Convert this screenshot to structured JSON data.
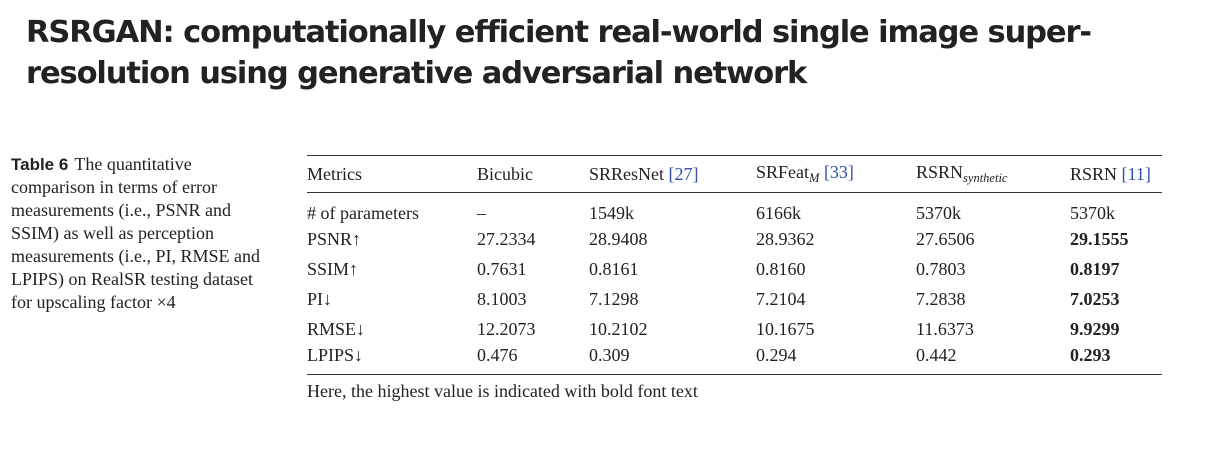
{
  "paper_title": "RSRGAN: computationally efficient real-world single image super-resolution using generative adversarial network",
  "caption": {
    "label": "Table 6",
    "text": "The quantitative comparison in terms of error measurements (i.e., PSNR and SSIM) as well as perception measurements (i.e., PI, RMSE and LPIPS) on RealSR testing dataset for upscaling factor ×4"
  },
  "table": {
    "headers": {
      "metrics": "Metrics",
      "bicubic": "Bicubic",
      "srresnet": "SRResNet",
      "srresnet_ref": "[27]",
      "srfeat": "SRFeat",
      "srfeat_sub": "M",
      "srfeat_ref": "[33]",
      "rsrn_syn": "RSRN",
      "rsrn_syn_sub": "synthetic",
      "rsrn": "RSRN",
      "rsrn_ref": "[11]"
    },
    "rows": [
      {
        "metric": "# of parameters",
        "values": [
          "–",
          "1549k",
          "6166k",
          "5370k",
          "5370k"
        ],
        "best_index": -1
      },
      {
        "metric": "PSNR↑",
        "values": [
          "27.2334",
          "28.9408",
          "28.9362",
          "27.6506",
          "29.1555"
        ],
        "best_index": 4
      },
      {
        "metric": "SSIM↑",
        "values": [
          "0.7631",
          "0.8161",
          "0.8160",
          "0.7803",
          "0.8197"
        ],
        "best_index": 4
      },
      {
        "metric": "PI↓",
        "values": [
          "8.1003",
          "7.1298",
          "7.2104",
          "7.2838",
          "7.0253"
        ],
        "best_index": 4
      },
      {
        "metric": "RMSE↓",
        "values": [
          "12.2073",
          "10.2102",
          "10.1675",
          "11.6373",
          "9.9299"
        ],
        "best_index": 4
      },
      {
        "metric": "LPIPS↓",
        "values": [
          "0.476",
          "0.309",
          "0.294",
          "0.442",
          "0.293"
        ],
        "best_index": 4
      }
    ],
    "footnote": "Here, the highest value is indicated with bold font text"
  },
  "colors": {
    "reference_link": "#2f4fa8",
    "text": "#222222",
    "rule": "#333333"
  }
}
